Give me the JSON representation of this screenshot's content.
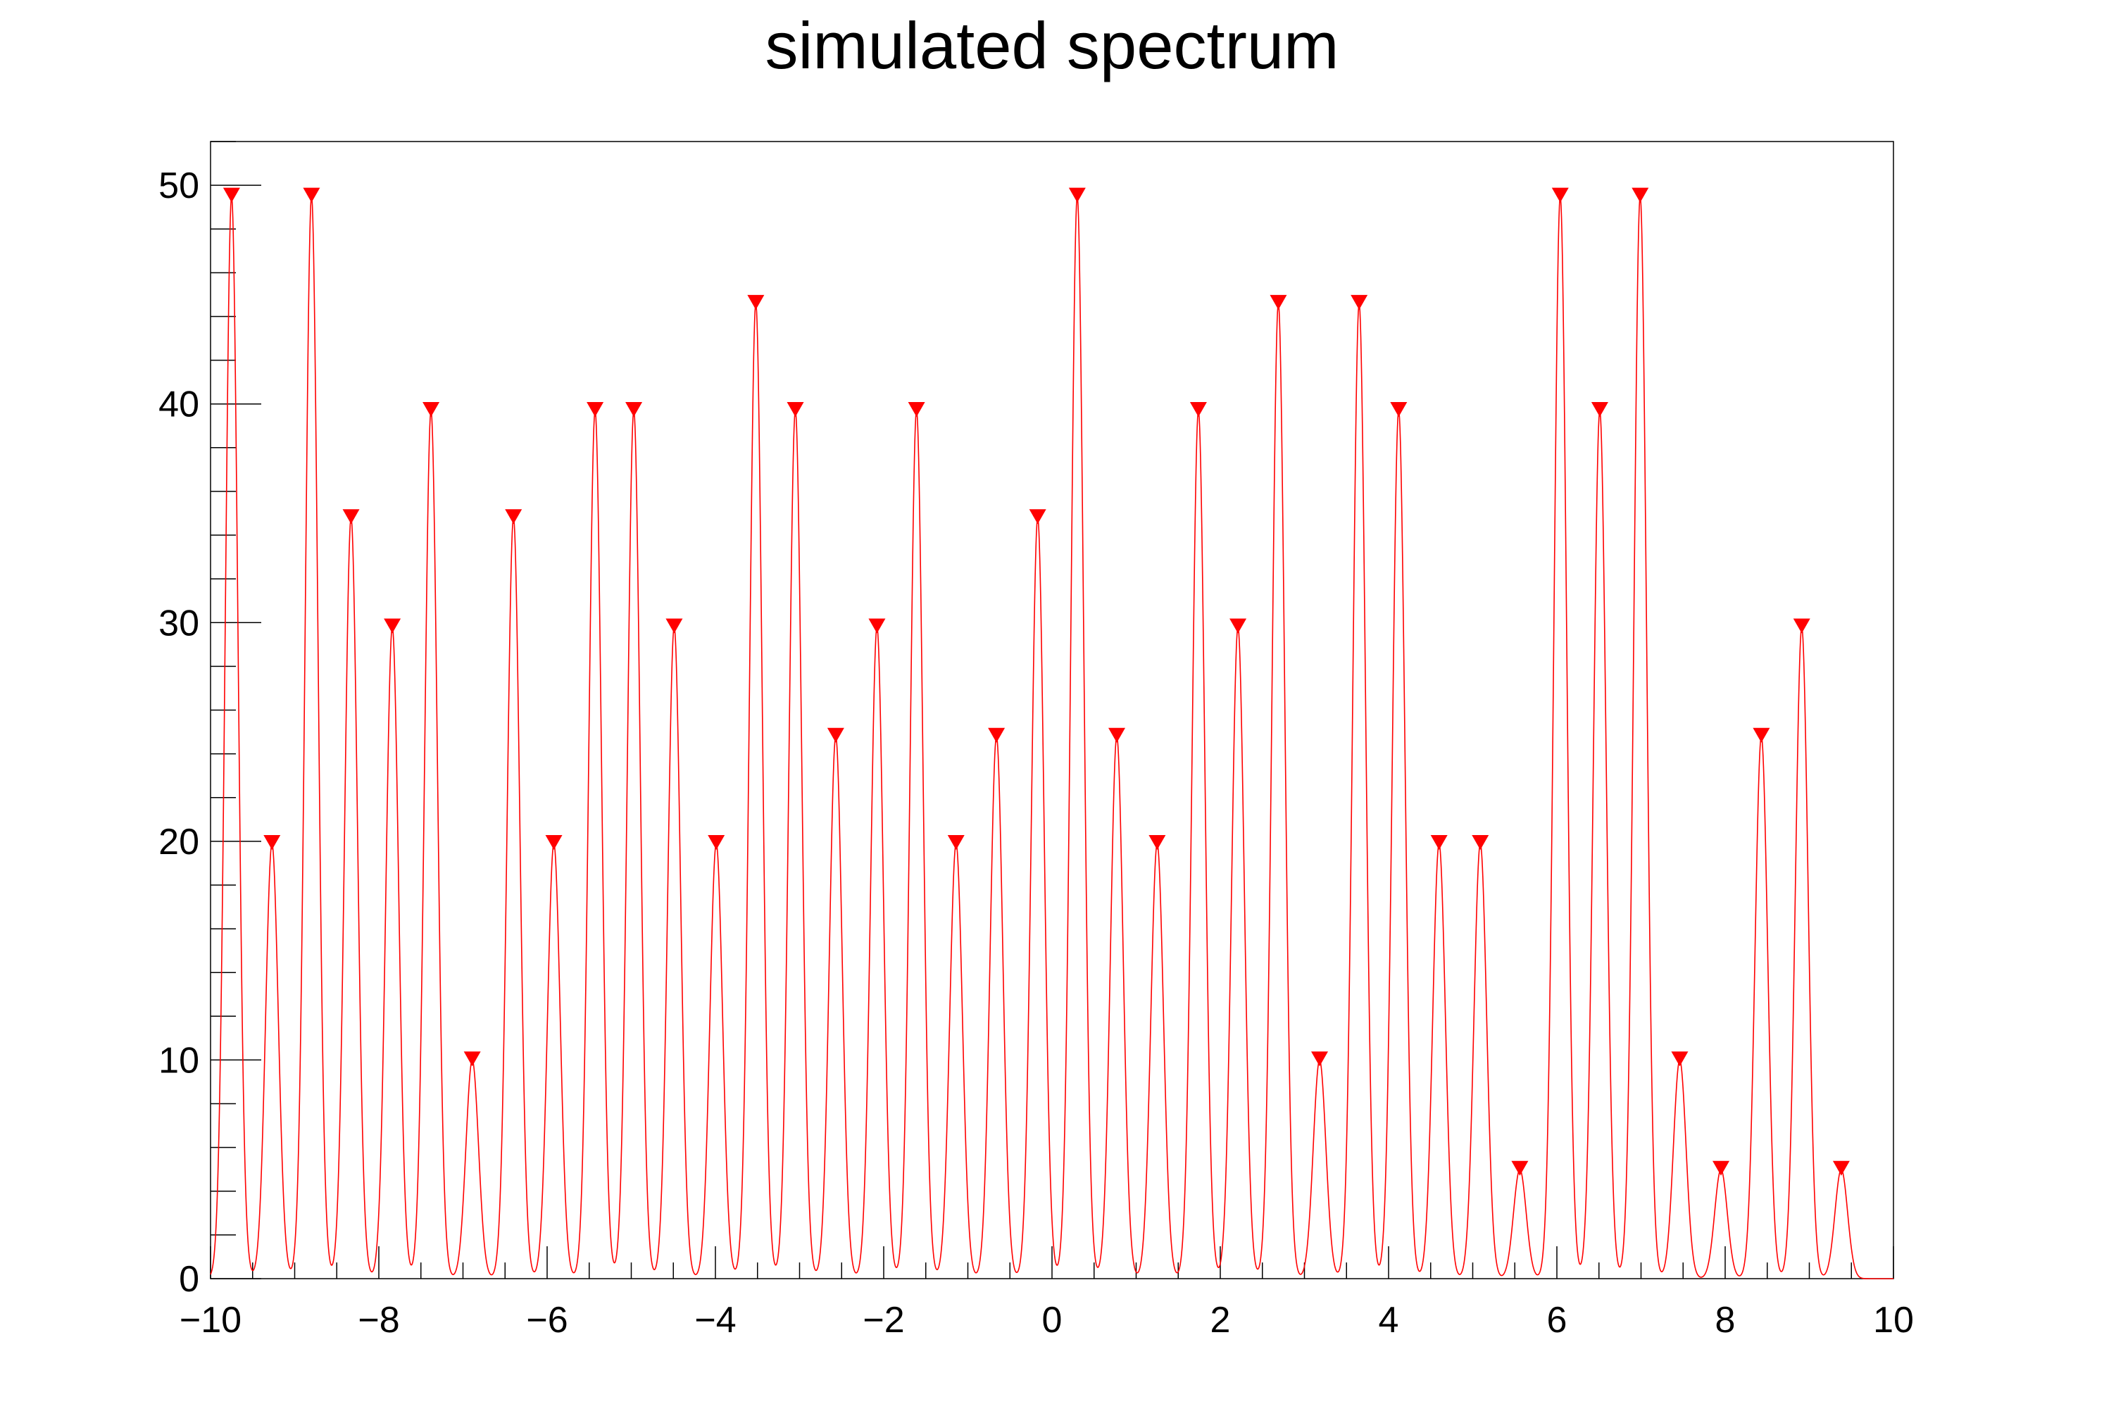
{
  "chart_data": {
    "type": "line",
    "title": "simulated spectrum",
    "xlabel": "",
    "ylabel": "",
    "xlim": [
      -10,
      10
    ],
    "ylim": [
      0,
      52
    ],
    "x_tick_labels": [
      "−10",
      "−8",
      "−6",
      "−4",
      "−2",
      "0",
      "2",
      "4",
      "6",
      "8",
      "10"
    ],
    "x_tick_values": [
      -10,
      -8,
      -6,
      -4,
      -2,
      0,
      2,
      4,
      6,
      8,
      10
    ],
    "y_tick_labels": [
      "0",
      "10",
      "20",
      "30",
      "40",
      "50"
    ],
    "y_tick_values": [
      0,
      10,
      20,
      30,
      40,
      50
    ],
    "grid": false,
    "line_color": "#ff0000",
    "marker_color": "#ff0000",
    "peak_width": 0.075,
    "peaks": [
      {
        "x": -9.75,
        "y": 49.5
      },
      {
        "x": -9.27,
        "y": 19.9
      },
      {
        "x": -8.8,
        "y": 49.5
      },
      {
        "x": -8.33,
        "y": 34.8
      },
      {
        "x": -7.84,
        "y": 29.8
      },
      {
        "x": -7.38,
        "y": 39.7
      },
      {
        "x": -6.89,
        "y": 10.0
      },
      {
        "x": -6.4,
        "y": 34.8
      },
      {
        "x": -5.92,
        "y": 19.9
      },
      {
        "x": -5.43,
        "y": 39.7
      },
      {
        "x": -4.97,
        "y": 39.7
      },
      {
        "x": -4.49,
        "y": 29.8
      },
      {
        "x": -3.99,
        "y": 19.9
      },
      {
        "x": -3.52,
        "y": 44.6
      },
      {
        "x": -3.05,
        "y": 39.7
      },
      {
        "x": -2.57,
        "y": 24.8
      },
      {
        "x": -2.08,
        "y": 29.8
      },
      {
        "x": -1.61,
        "y": 39.7
      },
      {
        "x": -1.14,
        "y": 19.9
      },
      {
        "x": -0.66,
        "y": 24.8
      },
      {
        "x": -0.17,
        "y": 34.8
      },
      {
        "x": 0.3,
        "y": 49.5
      },
      {
        "x": 0.77,
        "y": 24.8
      },
      {
        "x": 1.25,
        "y": 19.9
      },
      {
        "x": 1.74,
        "y": 39.7
      },
      {
        "x": 2.21,
        "y": 29.8
      },
      {
        "x": 2.69,
        "y": 44.6
      },
      {
        "x": 3.18,
        "y": 10.0
      },
      {
        "x": 3.65,
        "y": 44.6
      },
      {
        "x": 4.12,
        "y": 39.7
      },
      {
        "x": 4.6,
        "y": 19.9
      },
      {
        "x": 5.09,
        "y": 19.9
      },
      {
        "x": 5.56,
        "y": 5.0
      },
      {
        "x": 6.04,
        "y": 49.5
      },
      {
        "x": 6.51,
        "y": 39.7
      },
      {
        "x": 6.99,
        "y": 49.5
      },
      {
        "x": 7.46,
        "y": 10.0
      },
      {
        "x": 7.95,
        "y": 5.0
      },
      {
        "x": 8.43,
        "y": 24.8
      },
      {
        "x": 8.91,
        "y": 29.8
      },
      {
        "x": 9.38,
        "y": 5.0
      }
    ]
  }
}
